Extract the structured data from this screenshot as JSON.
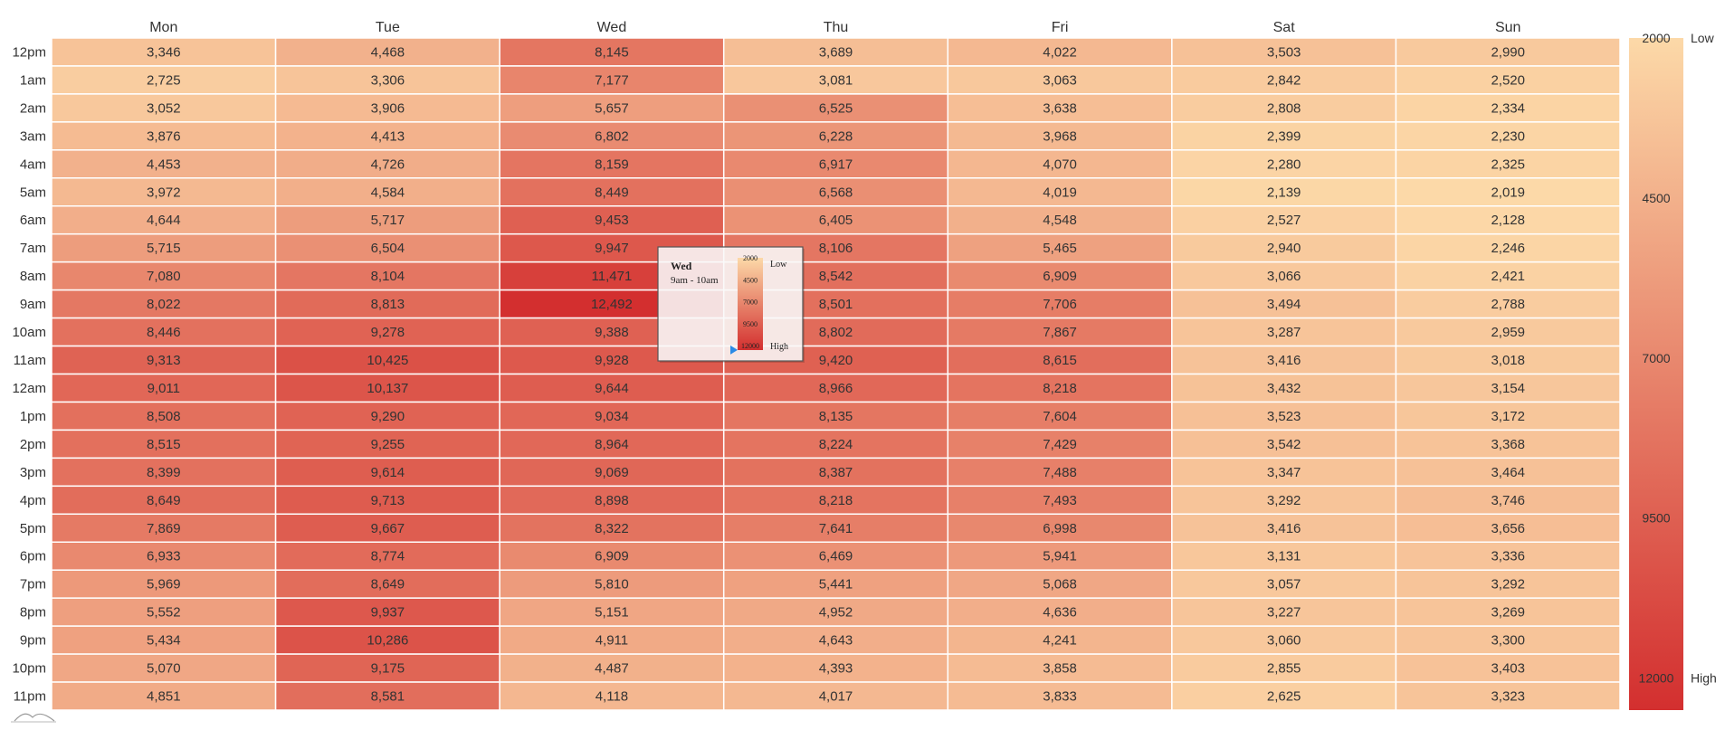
{
  "chart_data": {
    "type": "heatmap",
    "days": [
      "Mon",
      "Tue",
      "Wed",
      "Thu",
      "Fri",
      "Sat",
      "Sun"
    ],
    "hours": [
      "12pm",
      "1am",
      "2am",
      "3am",
      "4am",
      "5am",
      "6am",
      "7am",
      "8am",
      "9am",
      "10am",
      "11am",
      "12am",
      "1pm",
      "2pm",
      "3pm",
      "4pm",
      "5pm",
      "6pm",
      "7pm",
      "8pm",
      "9pm",
      "10pm",
      "11pm"
    ],
    "values": [
      [
        3346,
        4468,
        8145,
        3689,
        4022,
        3503,
        2990
      ],
      [
        2725,
        3306,
        7177,
        3081,
        3063,
        2842,
        2520
      ],
      [
        3052,
        3906,
        5657,
        6525,
        3638,
        2808,
        2334
      ],
      [
        3876,
        4413,
        6802,
        6228,
        3968,
        2399,
        2230
      ],
      [
        4453,
        4726,
        8159,
        6917,
        4070,
        2280,
        2325
      ],
      [
        3972,
        4584,
        8449,
        6568,
        4019,
        2139,
        2019
      ],
      [
        4644,
        5717,
        9453,
        6405,
        4548,
        2527,
        2128
      ],
      [
        5715,
        6504,
        9947,
        8106,
        5465,
        2940,
        2246
      ],
      [
        7080,
        8104,
        11471,
        8542,
        6909,
        3066,
        2421
      ],
      [
        8022,
        8813,
        12492,
        8501,
        7706,
        3494,
        2788
      ],
      [
        8446,
        9278,
        9388,
        8802,
        7867,
        3287,
        2959
      ],
      [
        9313,
        10425,
        9928,
        9420,
        8615,
        3416,
        3018
      ],
      [
        9011,
        10137,
        9644,
        8966,
        8218,
        3432,
        3154
      ],
      [
        8508,
        9290,
        9034,
        8135,
        7604,
        3523,
        3172
      ],
      [
        8515,
        9255,
        8964,
        8224,
        7429,
        3542,
        3368
      ],
      [
        8399,
        9614,
        9069,
        8387,
        7488,
        3347,
        3464
      ],
      [
        8649,
        9713,
        8898,
        8218,
        7493,
        3292,
        3746
      ],
      [
        7869,
        9667,
        8322,
        7641,
        6998,
        3416,
        3656
      ],
      [
        6933,
        8774,
        6909,
        6469,
        5941,
        3131,
        3336
      ],
      [
        5969,
        8649,
        5810,
        5441,
        5068,
        3057,
        3292
      ],
      [
        5552,
        9937,
        5151,
        4952,
        4636,
        3227,
        3269
      ],
      [
        5434,
        10286,
        4911,
        4643,
        4241,
        3060,
        3300
      ],
      [
        5070,
        9175,
        4487,
        4393,
        3858,
        2855,
        3403
      ],
      [
        4851,
        8581,
        4118,
        4017,
        3833,
        2625,
        3323
      ]
    ],
    "color_range": {
      "min": 2000,
      "max": 12500,
      "low_color": "#fcd9a8",
      "high_color": "#d32f2f"
    },
    "legend": {
      "ticks": [
        2000,
        4500,
        7000,
        9500,
        12000
      ],
      "low_label": "Low",
      "high_label": "High",
      "placement": "right"
    },
    "tooltip": {
      "day": "Wed",
      "range": "9am - 10am",
      "ticks": [
        "2000",
        "4500",
        "7000",
        "9500",
        "12000"
      ],
      "low_label": "Low",
      "high_label": "High",
      "pointer_value": 12492
    },
    "grid_line_color": "#ffffff"
  }
}
